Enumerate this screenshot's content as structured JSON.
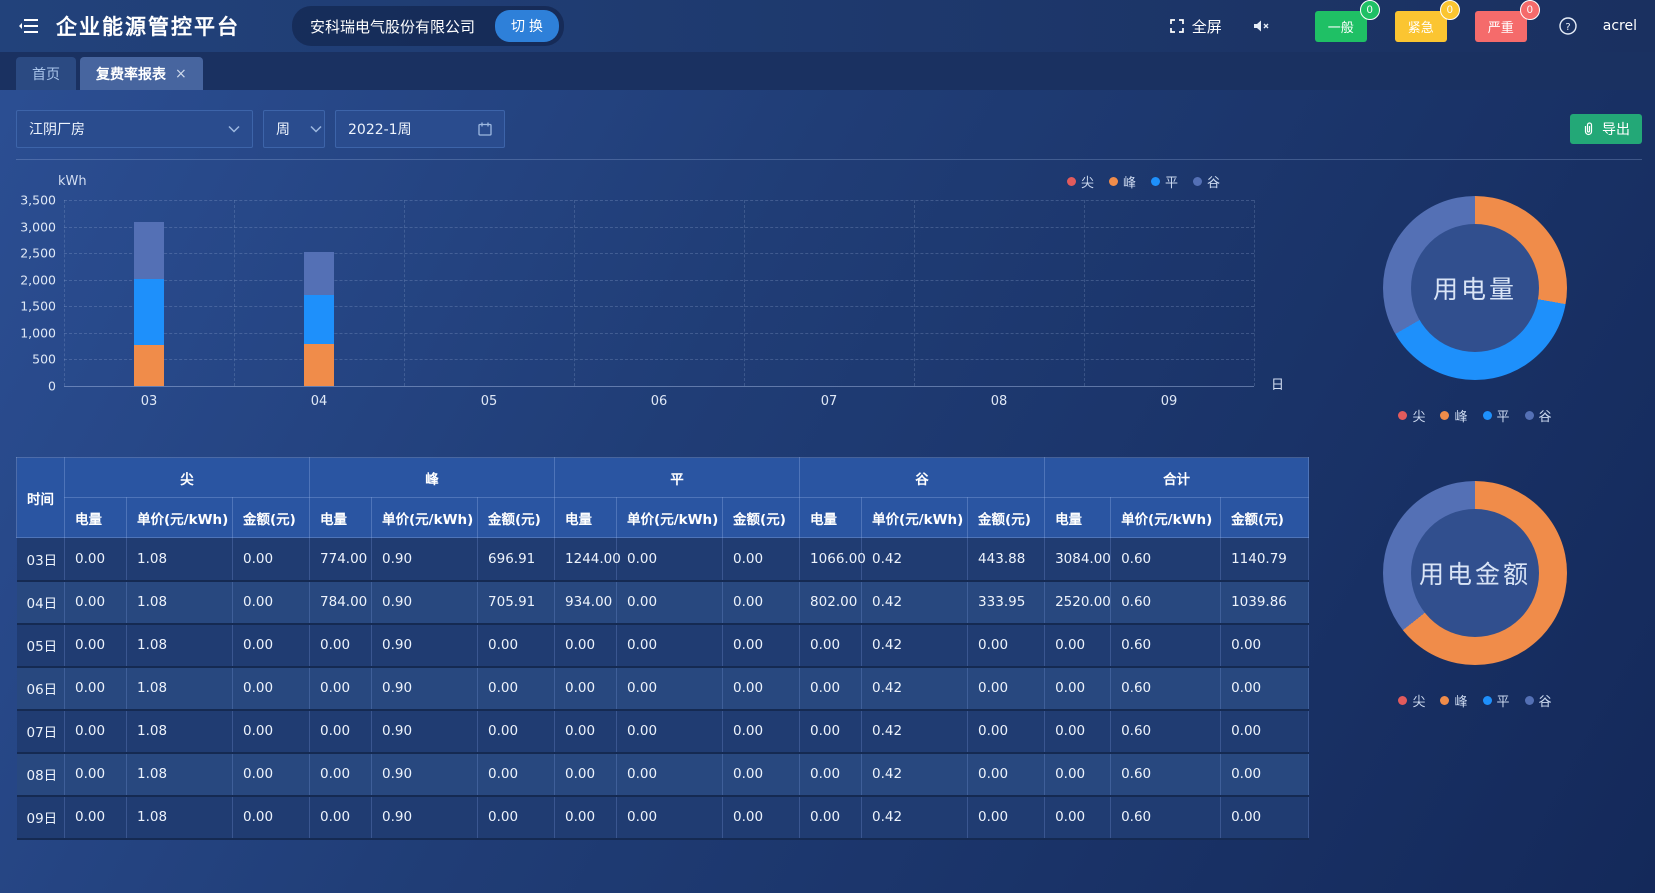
{
  "palette": {
    "尖": "#e25b5c",
    "峰": "#f08c4a",
    "平": "#1e90fb",
    "谷": "#5470b5"
  },
  "header": {
    "title": "企业能源管控平台",
    "company": "安科瑞电气股份有限公司",
    "switch_label": "切 换",
    "fullscreen_label": "全屏",
    "username": "acrel",
    "alarm_badges": [
      {
        "label": "一般",
        "count": "0",
        "color": "#1fc065"
      },
      {
        "label": "紧急",
        "count": "0",
        "color": "#fbc531"
      },
      {
        "label": "严重",
        "count": "0",
        "color": "#f56b6b"
      }
    ]
  },
  "tabs": [
    {
      "label": "首页",
      "active": false,
      "closable": false
    },
    {
      "label": "复费率报表",
      "active": true,
      "closable": true
    }
  ],
  "filters": {
    "site": "江阴厂房",
    "period": "周",
    "date": "2022-1周",
    "export_label": "导出"
  },
  "chart_data": [
    {
      "id": "bar-energy-by-day",
      "type": "bar",
      "stacked": true,
      "unit": "kWh",
      "xlabel": "日",
      "categories": [
        "03",
        "04",
        "05",
        "06",
        "07",
        "08",
        "09"
      ],
      "ylim": [
        0,
        3500
      ],
      "ytick_step": 500,
      "ytick_labels": [
        "0",
        "500",
        "1,000",
        "1,500",
        "2,000",
        "2,500",
        "3,000",
        "3,500"
      ],
      "grid": true,
      "legend": [
        "尖",
        "峰",
        "平",
        "谷"
      ],
      "legend_position": "top-right",
      "series": [
        {
          "name": "尖",
          "values": [
            0,
            0,
            0,
            0,
            0,
            0,
            0
          ]
        },
        {
          "name": "峰",
          "values": [
            774,
            784,
            0,
            0,
            0,
            0,
            0
          ]
        },
        {
          "name": "平",
          "values": [
            1244,
            934,
            0,
            0,
            0,
            0,
            0
          ]
        },
        {
          "name": "谷",
          "values": [
            1066,
            802,
            0,
            0,
            0,
            0,
            0
          ]
        }
      ]
    },
    {
      "id": "donut-energy",
      "type": "pie",
      "title": "用电量",
      "legend": [
        "尖",
        "峰",
        "平",
        "谷"
      ],
      "legend_position": "bottom",
      "slices": [
        {
          "name": "尖",
          "value": 0
        },
        {
          "name": "峰",
          "value": 1558
        },
        {
          "name": "平",
          "value": 2178
        },
        {
          "name": "谷",
          "value": 1868
        }
      ]
    },
    {
      "id": "donut-cost",
      "type": "pie",
      "title": "用电金额",
      "legend": [
        "尖",
        "峰",
        "平",
        "谷"
      ],
      "legend_position": "bottom",
      "slices": [
        {
          "name": "尖",
          "value": 0
        },
        {
          "name": "峰",
          "value": 1402.82
        },
        {
          "name": "平",
          "value": 0
        },
        {
          "name": "谷",
          "value": 777.83
        }
      ]
    }
  ],
  "table": {
    "time_header": "时间",
    "group_labels": [
      "尖",
      "峰",
      "平",
      "谷",
      "合计"
    ],
    "sub_headers": [
      "电量",
      "单价(元/kWh)",
      "金额(元)"
    ],
    "rows": [
      {
        "time": "03日",
        "values": [
          "0.00",
          "1.08",
          "0.00",
          "774.00",
          "0.90",
          "696.91",
          "1244.00",
          "0.00",
          "0.00",
          "1066.00",
          "0.42",
          "443.88",
          "3084.00",
          "0.60",
          "1140.79"
        ]
      },
      {
        "time": "04日",
        "values": [
          "0.00",
          "1.08",
          "0.00",
          "784.00",
          "0.90",
          "705.91",
          "934.00",
          "0.00",
          "0.00",
          "802.00",
          "0.42",
          "333.95",
          "2520.00",
          "0.60",
          "1039.86"
        ]
      },
      {
        "time": "05日",
        "values": [
          "0.00",
          "1.08",
          "0.00",
          "0.00",
          "0.90",
          "0.00",
          "0.00",
          "0.00",
          "0.00",
          "0.00",
          "0.42",
          "0.00",
          "0.00",
          "0.60",
          "0.00"
        ]
      },
      {
        "time": "06日",
        "values": [
          "0.00",
          "1.08",
          "0.00",
          "0.00",
          "0.90",
          "0.00",
          "0.00",
          "0.00",
          "0.00",
          "0.00",
          "0.42",
          "0.00",
          "0.00",
          "0.60",
          "0.00"
        ]
      },
      {
        "time": "07日",
        "values": [
          "0.00",
          "1.08",
          "0.00",
          "0.00",
          "0.90",
          "0.00",
          "0.00",
          "0.00",
          "0.00",
          "0.00",
          "0.42",
          "0.00",
          "0.00",
          "0.60",
          "0.00"
        ]
      },
      {
        "time": "08日",
        "values": [
          "0.00",
          "1.08",
          "0.00",
          "0.00",
          "0.90",
          "0.00",
          "0.00",
          "0.00",
          "0.00",
          "0.00",
          "0.42",
          "0.00",
          "0.00",
          "0.60",
          "0.00"
        ]
      },
      {
        "time": "09日",
        "values": [
          "0.00",
          "1.08",
          "0.00",
          "0.00",
          "0.90",
          "0.00",
          "0.00",
          "0.00",
          "0.00",
          "0.00",
          "0.42",
          "0.00",
          "0.00",
          "0.60",
          "0.00"
        ]
      }
    ]
  }
}
